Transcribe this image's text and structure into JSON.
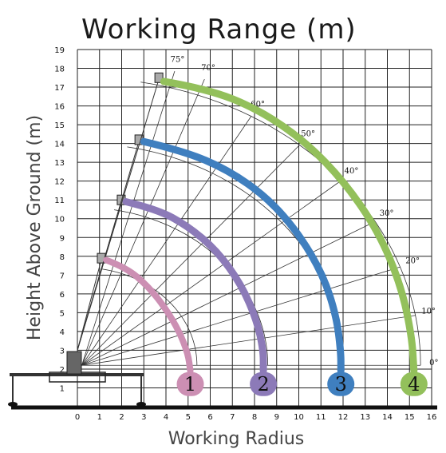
{
  "title": "Working Range (m)",
  "chart_data": {
    "type": "line",
    "title": "Working Range (m)",
    "xlabel": "Working Radius",
    "ylabel": "Height Above Ground (m)",
    "xlim": [
      0,
      16
    ],
    "ylim": [
      0,
      19
    ],
    "x_ticks": [
      "0",
      "1",
      "2",
      "3",
      "4",
      "5",
      "6",
      "7",
      "8",
      "9",
      "10",
      "11",
      "12",
      "13",
      "14",
      "15",
      "16"
    ],
    "y_ticks": [
      "1",
      "2",
      "3",
      "4",
      "5",
      "6",
      "7",
      "8",
      "9",
      "10",
      "11",
      "12",
      "13",
      "14",
      "15",
      "16",
      "17",
      "18",
      "19"
    ],
    "grid": true,
    "pivot": [
      0.2,
      2.2
    ],
    "angle_labels": [
      {
        "text": "75°",
        "deg": 75
      },
      {
        "text": "70°",
        "deg": 70
      },
      {
        "text": "60°",
        "deg": 60
      },
      {
        "text": "50°",
        "deg": 50
      },
      {
        "text": "40°",
        "deg": 40
      },
      {
        "text": "30°",
        "deg": 30
      },
      {
        "text": "20°",
        "deg": 20
      },
      {
        "text": "10°",
        "deg": 10
      },
      {
        "text": "0°",
        "deg": 0
      }
    ],
    "series": [
      {
        "name": "1",
        "color": "#cc8fb3",
        "x": [
          1.3,
          2.2,
          3.2,
          4.0,
          4.6,
          5.0,
          5.1
        ],
        "y": [
          7.8,
          7.4,
          6.4,
          5.2,
          4.0,
          2.8,
          1.9
        ]
      },
      {
        "name": "2",
        "color": "#8c7ab8",
        "x": [
          2.2,
          3.6,
          5.0,
          6.3,
          7.4,
          8.1,
          8.4,
          8.4
        ],
        "y": [
          10.9,
          10.5,
          9.6,
          8.3,
          6.5,
          4.6,
          3.0,
          1.9
        ]
      },
      {
        "name": "3",
        "color": "#3f7fbf",
        "x": [
          3.0,
          4.8,
          6.8,
          8.6,
          10.0,
          11.1,
          11.7,
          11.9,
          11.9
        ],
        "y": [
          14.1,
          13.6,
          12.6,
          11.1,
          9.2,
          7.0,
          4.8,
          2.9,
          1.9
        ]
      },
      {
        "name": "4",
        "color": "#93c05b",
        "x": [
          3.9,
          5.9,
          8.2,
          10.3,
          12.1,
          13.6,
          14.6,
          15.1,
          15.2
        ],
        "y": [
          17.3,
          16.9,
          15.8,
          14.1,
          11.9,
          9.3,
          6.5,
          3.8,
          1.9
        ]
      }
    ]
  }
}
